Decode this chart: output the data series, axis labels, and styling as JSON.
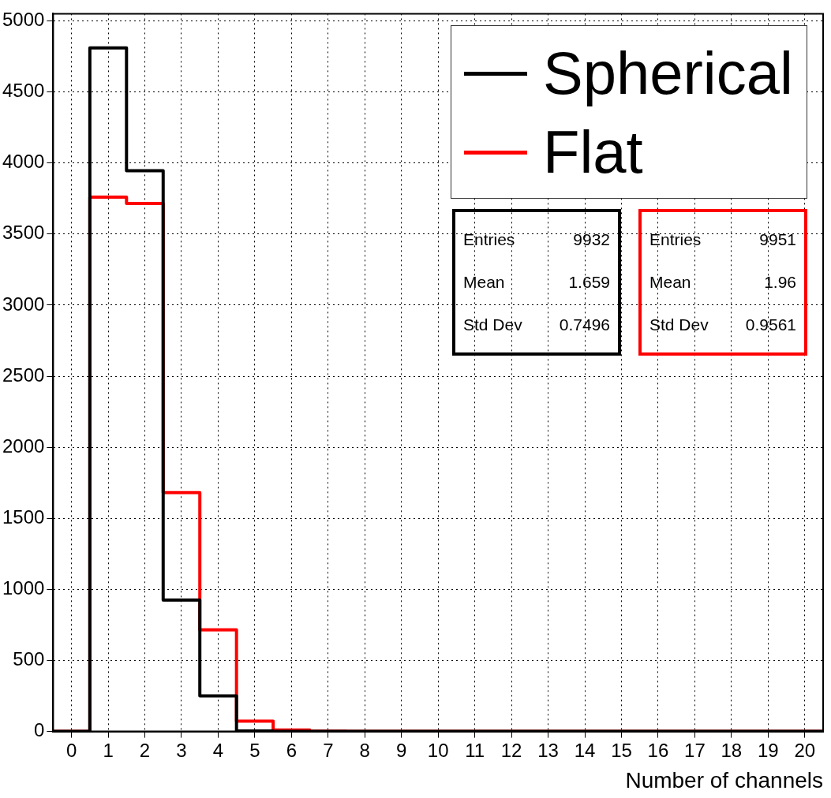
{
  "chart_data": {
    "type": "histogram",
    "xlabel": "Number of channels",
    "bins": [
      -0.5,
      0.5,
      1.5,
      2.5,
      3.5,
      4.5,
      5.5,
      6.5,
      7.5,
      8.5,
      9.5,
      10.5,
      11.5,
      12.5,
      13.5,
      14.5,
      15.5,
      16.5,
      17.5,
      18.5,
      19.5,
      20.5
    ],
    "series": [
      {
        "name": "Spherical",
        "color": "#000000",
        "values": [
          0,
          4810,
          3945,
          925,
          250,
          3,
          0,
          0,
          0,
          0,
          0,
          0,
          0,
          0,
          0,
          0,
          0,
          0,
          0,
          0,
          0
        ]
      },
      {
        "name": "Flat",
        "color": "#ff0000",
        "values": [
          0,
          3760,
          3715,
          1680,
          715,
          72,
          10,
          2,
          0,
          0,
          0,
          0,
          0,
          0,
          0,
          0,
          0,
          0,
          0,
          0,
          0
        ]
      }
    ],
    "xlim": [
      -0.5,
      20.5
    ],
    "xticks": [
      0,
      1,
      2,
      3,
      4,
      5,
      6,
      7,
      8,
      9,
      10,
      11,
      12,
      13,
      14,
      15,
      16,
      17,
      18,
      19,
      20
    ],
    "ylim": [
      0,
      5050
    ],
    "yticks": [
      0,
      500,
      1000,
      1500,
      2000,
      2500,
      3000,
      3500,
      4000,
      4500,
      5000
    ],
    "grid": true,
    "legend": "top right",
    "annotations": [
      "Entries\t9932\nMean\t1.659\nStd Dev\t0.7496",
      "Entries\t9951\nMean\t1.96\nStd Dev\t0.9561"
    ]
  }
}
